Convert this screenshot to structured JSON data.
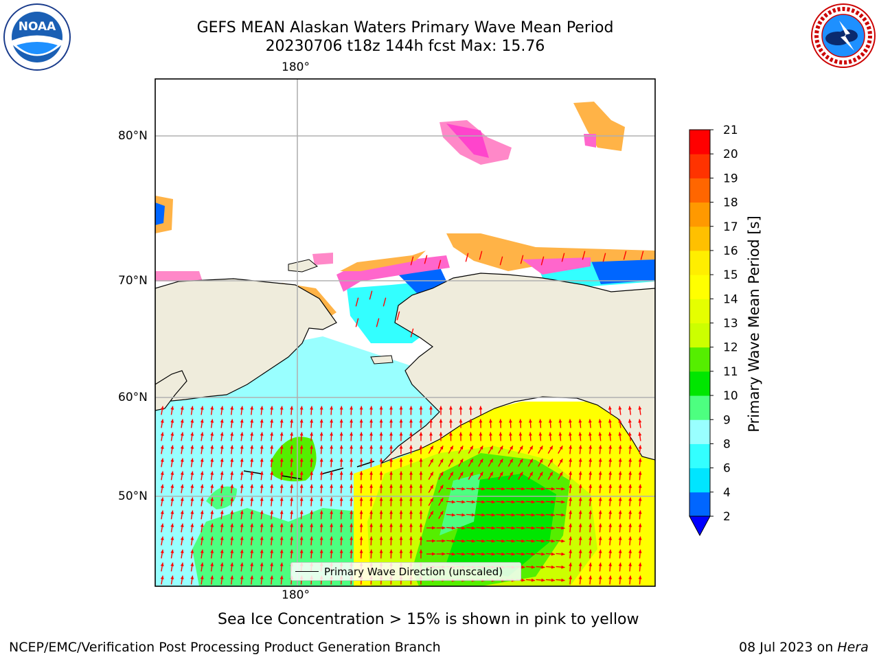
{
  "title": {
    "line1": "GEFS MEAN Alaskan Waters Primary Wave Mean Period",
    "line2": "20230706 t18z 144h fcst   Max: 15.76"
  },
  "logos": {
    "noaa": {
      "text": "NOAA",
      "ring_text": "NATIONAL OCEANIC AND ATMOSPHERIC ADMINISTRATION · U.S. DEPARTMENT OF COMMERCE"
    },
    "nws": {
      "ring_text": "NATIONAL WEATHER SERVICE"
    }
  },
  "map": {
    "lon_label_top": "180°",
    "lon_label_bottom": "180°",
    "lat_labels": [
      "80°N",
      "70°N",
      "60°N",
      "50°N"
    ],
    "land_color": "#efecdc",
    "ocean_no_data_color": "#ffffff",
    "arrow_color": "#ff0000"
  },
  "legend": {
    "label": "Primary Wave Direction (unscaled)"
  },
  "colorbar": {
    "title": "Primary Wave Mean Period [s]",
    "ticks": [
      "2",
      "4",
      "6",
      "8",
      "9",
      "10",
      "11",
      "12",
      "13",
      "14",
      "15",
      "16",
      "17",
      "18",
      "19",
      "20",
      "21"
    ],
    "colors": [
      "#0066ff",
      "#00e5ff",
      "#33ffff",
      "#99ffff",
      "#4dff80",
      "#00e600",
      "#55ee00",
      "#ccff00",
      "#e5ff00",
      "#ffff00",
      "#ffee00",
      "#ffc000",
      "#ff9900",
      "#ff6600",
      "#ff3300",
      "#ff0000"
    ],
    "under_color": "#0000ff"
  },
  "note": "Sea Ice Concentration > 15% is shown in pink to yellow",
  "footer": {
    "left": "NCEP/EMC/Verification Post Processing Product Generation Branch",
    "right_date": "08 Jul 2023 on ",
    "right_machine": "Hera"
  }
}
